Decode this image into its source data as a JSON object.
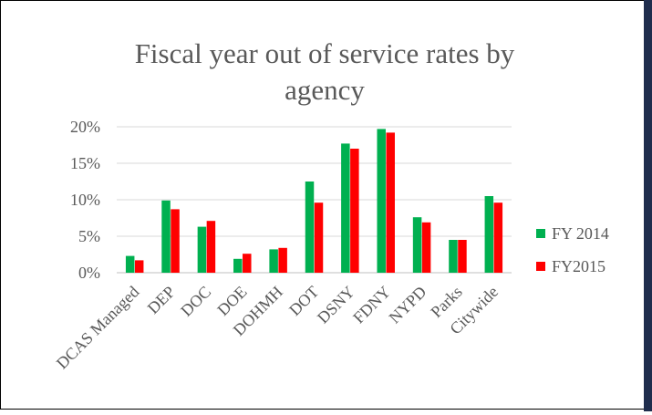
{
  "chart_data": {
    "type": "bar",
    "title_lines": [
      "Fiscal year out of service rates by",
      "agency"
    ],
    "categories": [
      "DCAS Managed",
      "DEP",
      "DOC",
      "DOE",
      "DOHMH",
      "DOT",
      "DSNY",
      "FDNY",
      "NYPD",
      "Parks",
      "Citywide"
    ],
    "series": [
      {
        "name": "FY 2014",
        "color": "#00b050",
        "values": [
          2.3,
          9.9,
          6.3,
          1.9,
          3.2,
          12.5,
          17.7,
          19.7,
          7.6,
          4.5,
          10.5
        ]
      },
      {
        "name": "FY2015",
        "color": "#ff0000",
        "values": [
          1.7,
          8.7,
          7.1,
          2.6,
          3.4,
          9.6,
          17.0,
          19.2,
          6.9,
          4.5,
          9.6
        ]
      }
    ],
    "y_ticks": [
      "0%",
      "5%",
      "10%",
      "15%",
      "20%"
    ],
    "ylim": [
      0,
      20
    ],
    "grid": true,
    "legend_position": "right"
  }
}
